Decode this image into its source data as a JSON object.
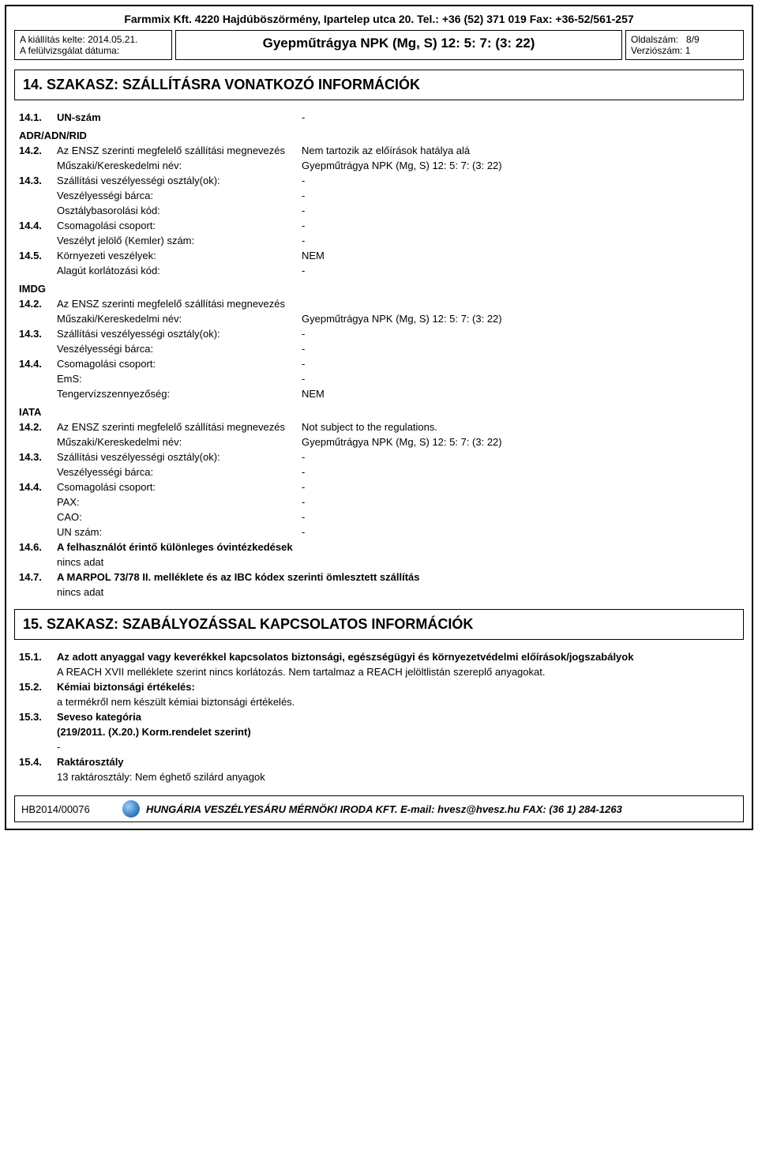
{
  "header": {
    "company": "Farmmix Kft. 4220 Hajdúböszörmény, Ipartelep utca 20. Tel.: +36 (52) 371 019 Fax: +36-52/561-257",
    "issue_label": "A kiállítás kelte:",
    "issue_date": "2014.05.21.",
    "revision_label": "A felülvizsgálat dátuma:",
    "title": "Gyepműtrágya NPK (Mg, S) 12: 5: 7: (3: 22)",
    "page_label": "Oldalszám:",
    "page_value": "8/9",
    "version_label": "Verziószám:",
    "version_value": "1"
  },
  "section14": {
    "title": "14. SZAKASZ: SZÁLLÍTÁSRA VONATKOZÓ INFORMÁCIÓK",
    "items": {
      "un_number": {
        "num": "14.1.",
        "label": "UN-szám",
        "value": "-"
      },
      "adr_heading": "ADR/ADN/RID",
      "adr_142_label": "Az ENSZ szerinti megfelelő szállítási megnevezés",
      "adr_142_value": "Nem tartozik az előírások hatálya alá",
      "adr_tech_label": "Műszaki/Kereskedelmi név:",
      "adr_tech_value": "Gyepműtrágya NPK (Mg, S) 12: 5: 7: (3: 22)",
      "adr_143_label": "Szállítási veszélyességi osztály(ok):",
      "adr_143_value": "-",
      "adr_barca_label": "Veszélyességi bárca:",
      "adr_barca_value": "-",
      "adr_osztaly_label": "Osztálybasorolási kód:",
      "adr_osztaly_value": "-",
      "adr_144_label": "Csomagolási csoport:",
      "adr_144_value": "-",
      "adr_kemler_label": "Veszélyt jelölő (Kemler) szám:",
      "adr_kemler_value": "-",
      "adr_145_label": "Környezeti veszélyek:",
      "adr_145_value": "NEM",
      "adr_alagut_label": "Alagút korlátozási kód:",
      "adr_alagut_value": "-",
      "imdg_heading": "IMDG",
      "imdg_142_label": "Az ENSZ szerinti megfelelő szállítási megnevezés",
      "imdg_tech_label": "Műszaki/Kereskedelmi név:",
      "imdg_tech_value": "Gyepműtrágya NPK (Mg, S) 12: 5: 7: (3: 22)",
      "imdg_143_label": "Szállítási veszélyességi osztály(ok):",
      "imdg_143_value": "-",
      "imdg_barca_label": "Veszélyességi bárca:",
      "imdg_barca_value": "-",
      "imdg_144_label": "Csomagolási csoport:",
      "imdg_144_value": "-",
      "imdg_ems_label": "EmS:",
      "imdg_ems_value": "-",
      "imdg_tenger_label": "Tengervízszennyezőség:",
      "imdg_tenger_value": "NEM",
      "iata_heading": "IATA",
      "iata_142_label": "Az ENSZ szerinti megfelelő szállítási megnevezés",
      "iata_142_value": "Not subject to the regulations.",
      "iata_tech_label": "Műszaki/Kereskedelmi név:",
      "iata_tech_value": "Gyepműtrágya NPK (Mg, S) 12: 5: 7: (3: 22)",
      "iata_143_label": "Szállítási veszélyességi osztály(ok):",
      "iata_143_value": "-",
      "iata_barca_label": "Veszélyességi bárca:",
      "iata_barca_value": "-",
      "iata_144_label": "Csomagolási csoport:",
      "iata_144_value": "-",
      "iata_pax_label": "PAX:",
      "iata_pax_value": "-",
      "iata_cao_label": "CAO:",
      "iata_cao_value": "-",
      "iata_un_label": "UN szám:",
      "iata_un_value": "-",
      "item_146_label": "A felhasználót érintő különleges óvintézkedések",
      "item_146_value": "nincs adat",
      "item_147_label": "A MARPOL 73/78 II. melléklete és az IBC kódex szerinti ömlesztett szállítás",
      "item_147_value": "nincs adat"
    },
    "nums": {
      "n142": "14.2.",
      "n143": "14.3.",
      "n144": "14.4.",
      "n145": "14.5.",
      "n146": "14.6.",
      "n147": "14.7."
    }
  },
  "section15": {
    "title": "15. SZAKASZ: SZABÁLYOZÁSSAL KAPCSOLATOS INFORMÁCIÓK",
    "nums": {
      "n151": "15.1.",
      "n152": "15.2.",
      "n153": "15.3.",
      "n154": "15.4."
    },
    "item_151_label": "Az adott anyaggal vagy keverékkel kapcsolatos biztonsági, egészségügyi és környezetvédelmi előírások/jogszabályok",
    "item_151_body": "A REACH XVII melléklete szerint nincs korlátozás. Nem tartalmaz a REACH jelöltlistán szereplő anyagokat.",
    "item_152_label": "Kémiai biztonsági értékelés:",
    "item_152_body": "a termékről nem készült kémiai biztonsági értékelés.",
    "item_153_label": "Seveso kategória",
    "item_153_body": "(219/2011. (X.20.) Korm.rendelet szerint)",
    "item_153_dash": "-",
    "item_154_label": "Raktárosztály",
    "item_154_body": "13 raktárosztály: Nem éghető szilárd anyagok"
  },
  "footer": {
    "code": "HB2014/00076",
    "text": "HUNGÁRIA VESZÉLYESÁRU MÉRNÖKI IRODA KFT. E-mail: hvesz@hvesz.hu FAX: (36 1) 284-1263"
  }
}
